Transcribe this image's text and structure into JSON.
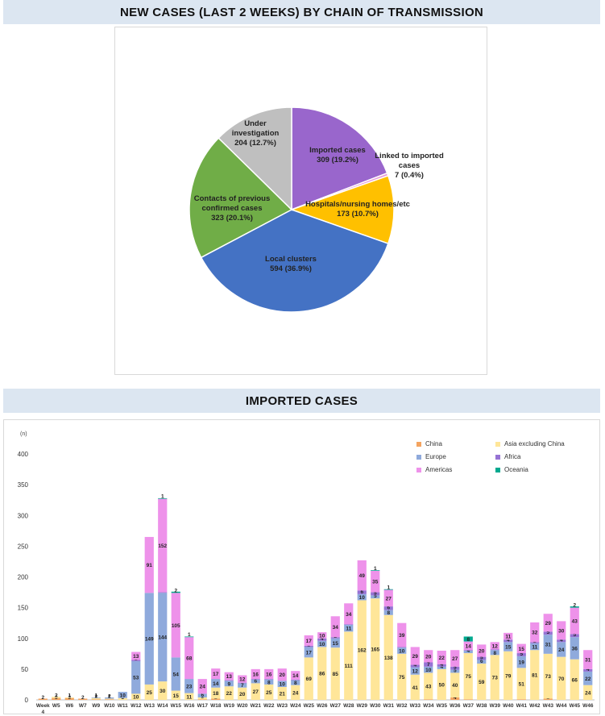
{
  "pie_title": "NEW CASES (LAST 2 WEEKS) BY CHAIN OF TRANSMISSION",
  "bar_title": "IMPORTED CASES",
  "chart_data": [
    {
      "type": "pie",
      "slices": [
        {
          "label": "Imported cases",
          "value": 309,
          "value_text": "309 (19.2%)",
          "color": "#9966cc"
        },
        {
          "label": "Linked to imported cases",
          "value": 7,
          "value_text": "7 (0.4%)",
          "color": "#e89bd8"
        },
        {
          "label": "Hospitals/nursing homes/etc",
          "value": 173,
          "value_text": "173 (10.7%)",
          "color": "#ffc000"
        },
        {
          "label": "Local clusters",
          "value": 594,
          "value_text": "594 (36.9%)",
          "color": "#4472c4"
        },
        {
          "label": "Contacts of previous confirmed cases",
          "value": 323,
          "value_text": "323 (20.1%)",
          "color": "#70ad47"
        },
        {
          "label": "Under investigation",
          "value": 204,
          "value_text": "204 (12.7%)",
          "color": "#bfbfbf"
        }
      ]
    },
    {
      "type": "bar",
      "stacked": true,
      "y_unit_label": "(n)",
      "ylim": [
        0,
        400
      ],
      "yticks": [
        0,
        50,
        100,
        150,
        200,
        250,
        300,
        350,
        400
      ],
      "legend_position": "top-right",
      "categories": [
        "Week 4",
        "W5",
        "W6",
        "W7",
        "W9",
        "W10",
        "W11",
        "W12",
        "W13",
        "W14",
        "W15",
        "W16",
        "W17",
        "W18",
        "W19",
        "W20",
        "W21",
        "W22",
        "W23",
        "W24",
        "W25",
        "W26",
        "W27",
        "W28",
        "W29",
        "W30",
        "W31",
        "W32",
        "W33",
        "W34",
        "W35",
        "W36",
        "W37",
        "W38",
        "W39",
        "W40",
        "W41",
        "W42",
        "W43",
        "W44",
        "W45",
        "W46"
      ],
      "series": [
        {
          "name": "China",
          "color": "#f4a460",
          "values": [
            2,
            3,
            3,
            2,
            1,
            1,
            0,
            0,
            0,
            0,
            0,
            0,
            1,
            2,
            0,
            0,
            0,
            0,
            0,
            0,
            0,
            0,
            0,
            0,
            0,
            0,
            0,
            0,
            0,
            1,
            0,
            4,
            1,
            0,
            0,
            0,
            1,
            0,
            2,
            0,
            0,
            0
          ]
        },
        {
          "name": "Asia excluding China",
          "color": "#ffe699",
          "values": [
            0,
            2,
            1,
            0,
            2,
            1,
            3,
            10,
            25,
            30,
            15,
            11,
            3,
            18,
            22,
            20,
            27,
            25,
            21,
            24,
            69,
            86,
            85,
            111,
            162,
            165,
            138,
            75,
            41,
            43,
            50,
            40,
            75,
            59,
            73,
            79,
            51,
            81,
            73,
            70,
            66,
            24
          ]
        },
        {
          "name": "Europe",
          "color": "#8faadc",
          "values": [
            0,
            0,
            0,
            0,
            1,
            2,
            10,
            53,
            149,
            144,
            54,
            23,
            6,
            14,
            9,
            7,
            6,
            8,
            10,
            8,
            17,
            10,
            15,
            11,
            10,
            5,
            8,
            10,
            12,
            10,
            4,
            5,
            4,
            6,
            8,
            15,
            19,
            11,
            31,
            24,
            36,
            22
          ]
        },
        {
          "name": "Africa",
          "color": "#9673d4",
          "values": [
            0,
            0,
            0,
            0,
            0,
            0,
            0,
            2,
            0,
            1,
            0,
            0,
            0,
            0,
            1,
            1,
            1,
            1,
            0,
            1,
            2,
            4,
            2,
            1,
            6,
            5,
            6,
            1,
            4,
            7,
            4,
            5,
            1,
            5,
            1,
            4,
            5,
            2,
            5,
            4,
            5,
            4
          ]
        },
        {
          "name": "Americas",
          "color": "#ee92ea",
          "values": [
            0,
            0,
            0,
            0,
            0,
            0,
            0,
            13,
            91,
            152,
            105,
            68,
            24,
            17,
            13,
            12,
            16,
            16,
            20,
            14,
            17,
            10,
            34,
            34,
            49,
            35,
            27,
            39,
            29,
            20,
            22,
            27,
            14,
            20,
            12,
            11,
            15,
            32,
            29,
            30,
            43,
            31
          ]
        },
        {
          "name": "Oceania",
          "color": "#00a98f",
          "values": [
            0,
            0,
            0,
            0,
            0,
            0,
            0,
            0,
            0,
            1,
            2,
            1,
            0,
            0,
            0,
            0,
            0,
            0,
            0,
            0,
            0,
            0,
            0,
            0,
            0,
            1,
            1,
            0,
            0,
            0,
            0,
            0,
            8,
            0,
            0,
            0,
            0,
            0,
            0,
            0,
            2,
            0
          ]
        }
      ]
    }
  ]
}
